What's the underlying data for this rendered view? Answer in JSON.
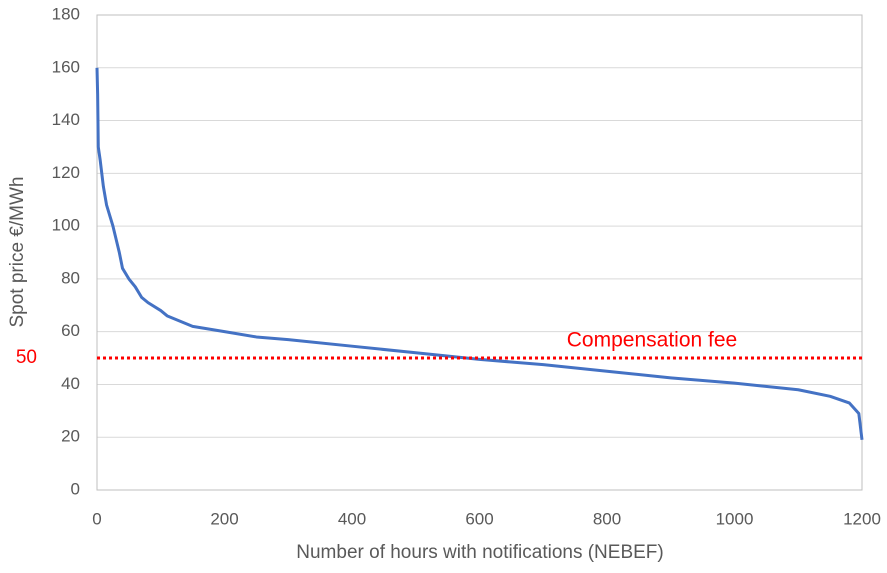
{
  "chart_data": {
    "type": "line",
    "x_label": "Number of hours with notifications (NEBEF)",
    "y_label": "Spot price €/MWh",
    "x": [
      0,
      1,
      2,
      5,
      10,
      15,
      20,
      25,
      30,
      35,
      40,
      50,
      60,
      70,
      80,
      100,
      110,
      150,
      200,
      250,
      300,
      400,
      500,
      600,
      700,
      800,
      900,
      1000,
      1100,
      1150,
      1180,
      1195,
      1200
    ],
    "series": [
      {
        "name": "Spot price",
        "color": "#4472c4",
        "values": [
          160,
          150,
          130,
          125,
          115,
          108,
          104,
          100,
          95,
          90,
          84,
          80,
          77,
          73,
          71,
          68,
          66,
          62,
          60,
          58,
          57,
          54.5,
          52,
          49.5,
          47.5,
          45,
          42.5,
          40.5,
          38,
          35.5,
          33,
          29,
          19
        ]
      }
    ],
    "reference_line": {
      "value": 50,
      "label": "Compensation fee",
      "color": "#ff0000"
    },
    "xlim": [
      0,
      1200
    ],
    "xticks": [
      0,
      200,
      400,
      600,
      800,
      1000,
      1200
    ],
    "ylim": [
      0,
      180
    ],
    "yticks": [
      0,
      20,
      40,
      60,
      80,
      100,
      120,
      140,
      160,
      180
    ],
    "grid": true
  }
}
